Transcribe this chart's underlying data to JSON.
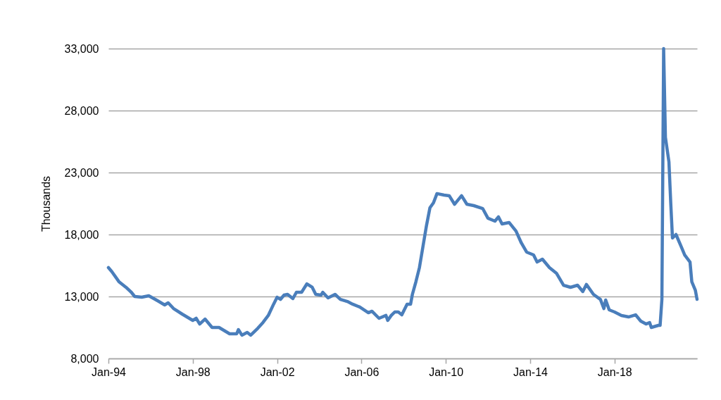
{
  "chart_data": {
    "type": "line",
    "ylabel": "Thousands",
    "color": "#4a7ebb",
    "grid": "y",
    "marker": "none",
    "line_style": "solid",
    "x": [
      "1994-01",
      "1994-03",
      "1994-07",
      "1994-11",
      "1995-02",
      "1995-04",
      "1995-08",
      "1995-12",
      "1996-05",
      "1996-09",
      "1996-11",
      "1997-02",
      "1997-07",
      "1998-01",
      "1998-03",
      "1998-05",
      "1998-08",
      "1998-12",
      "1999-04",
      "1999-06",
      "1999-10",
      "2000-02",
      "2000-03",
      "2000-05",
      "2000-08",
      "2000-10",
      "2001-02",
      "2001-05",
      "2001-08",
      "2001-11",
      "2002-01",
      "2002-03",
      "2002-05",
      "2002-07",
      "2002-10",
      "2002-12",
      "2003-03",
      "2003-06",
      "2003-09",
      "2003-11",
      "2004-02",
      "2004-03",
      "2004-06",
      "2004-10",
      "2005-01",
      "2005-05",
      "2005-08",
      "2005-12",
      "2006-05",
      "2006-07",
      "2006-11",
      "2007-03",
      "2007-04",
      "2007-06",
      "2007-08",
      "2007-10",
      "2007-12",
      "2008-03",
      "2008-05",
      "2008-06",
      "2008-08",
      "2008-10",
      "2008-12",
      "2009-02",
      "2009-04",
      "2009-06",
      "2009-08",
      "2009-12",
      "2010-03",
      "2010-06",
      "2010-10",
      "2011-01",
      "2011-05",
      "2011-10",
      "2012-01",
      "2012-05",
      "2012-07",
      "2012-09",
      "2013-01",
      "2013-05",
      "2013-08",
      "2013-11",
      "2014-03",
      "2014-05",
      "2014-08",
      "2014-12",
      "2015-04",
      "2015-08",
      "2015-12",
      "2016-04",
      "2016-07",
      "2016-09",
      "2017-01",
      "2017-05",
      "2017-07",
      "2017-08",
      "2017-10",
      "2018-01",
      "2018-05",
      "2018-09",
      "2019-01",
      "2019-04",
      "2019-07",
      "2019-09",
      "2019-10",
      "2020-02",
      "2020-03",
      "2020-04",
      "2020-05",
      "2020-06",
      "2020-08",
      "2020-09",
      "2020-10",
      "2020-12",
      "2021-03",
      "2021-05",
      "2021-08",
      "2021-09",
      "2021-11",
      "2021-12"
    ],
    "values": [
      15330,
      15000,
      14200,
      13740,
      13340,
      13000,
      12940,
      13060,
      12660,
      12320,
      12490,
      12030,
      11580,
      11070,
      11240,
      10780,
      11180,
      10500,
      10500,
      10330,
      9990,
      9990,
      10330,
      9880,
      10100,
      9880,
      10440,
      10900,
      11470,
      12380,
      12940,
      12770,
      13110,
      13170,
      12830,
      13340,
      13340,
      14020,
      13740,
      13170,
      13110,
      13340,
      12890,
      13170,
      12770,
      12600,
      12380,
      12150,
      11690,
      11810,
      11240,
      11470,
      11070,
      11470,
      11750,
      11750,
      11520,
      12380,
      12380,
      13170,
      14190,
      15330,
      17030,
      18740,
      20160,
      20560,
      21300,
      21180,
      21130,
      20440,
      21130,
      20440,
      20330,
      20100,
      19310,
      19080,
      19420,
      18850,
      18970,
      18280,
      17320,
      16580,
      16350,
      15780,
      16010,
      15330,
      14880,
      13910,
      13740,
      13910,
      13400,
      13970,
      13170,
      12770,
      12030,
      12720,
      11920,
      11750,
      11470,
      11350,
      11520,
      11010,
      10780,
      10900,
      10500,
      10670,
      10670,
      12770,
      33000,
      25840,
      23850,
      20560,
      17720,
      18000,
      17030,
      16350,
      15780,
      14190,
      13510,
      12770
    ],
    "xlim": [
      "1994-01",
      "2021-12"
    ],
    "xticks": [
      {
        "value": "1994-01",
        "label": "Jan-94"
      },
      {
        "value": "1998-01",
        "label": "Jan-98"
      },
      {
        "value": "2002-01",
        "label": "Jan-02"
      },
      {
        "value": "2006-01",
        "label": "Jan-06"
      },
      {
        "value": "2010-01",
        "label": "Jan-10"
      },
      {
        "value": "2014-01",
        "label": "Jan-14"
      },
      {
        "value": "2018-01",
        "label": "Jan-18"
      }
    ],
    "ylim": [
      8000,
      33000
    ],
    "yticks": [
      {
        "value": 8000,
        "label": "8,000"
      },
      {
        "value": 13000,
        "label": "13,000"
      },
      {
        "value": 18000,
        "label": "18,000"
      },
      {
        "value": 23000,
        "label": "23,000"
      },
      {
        "value": 28000,
        "label": "28,000"
      },
      {
        "value": 33000,
        "label": "33,000"
      }
    ]
  }
}
